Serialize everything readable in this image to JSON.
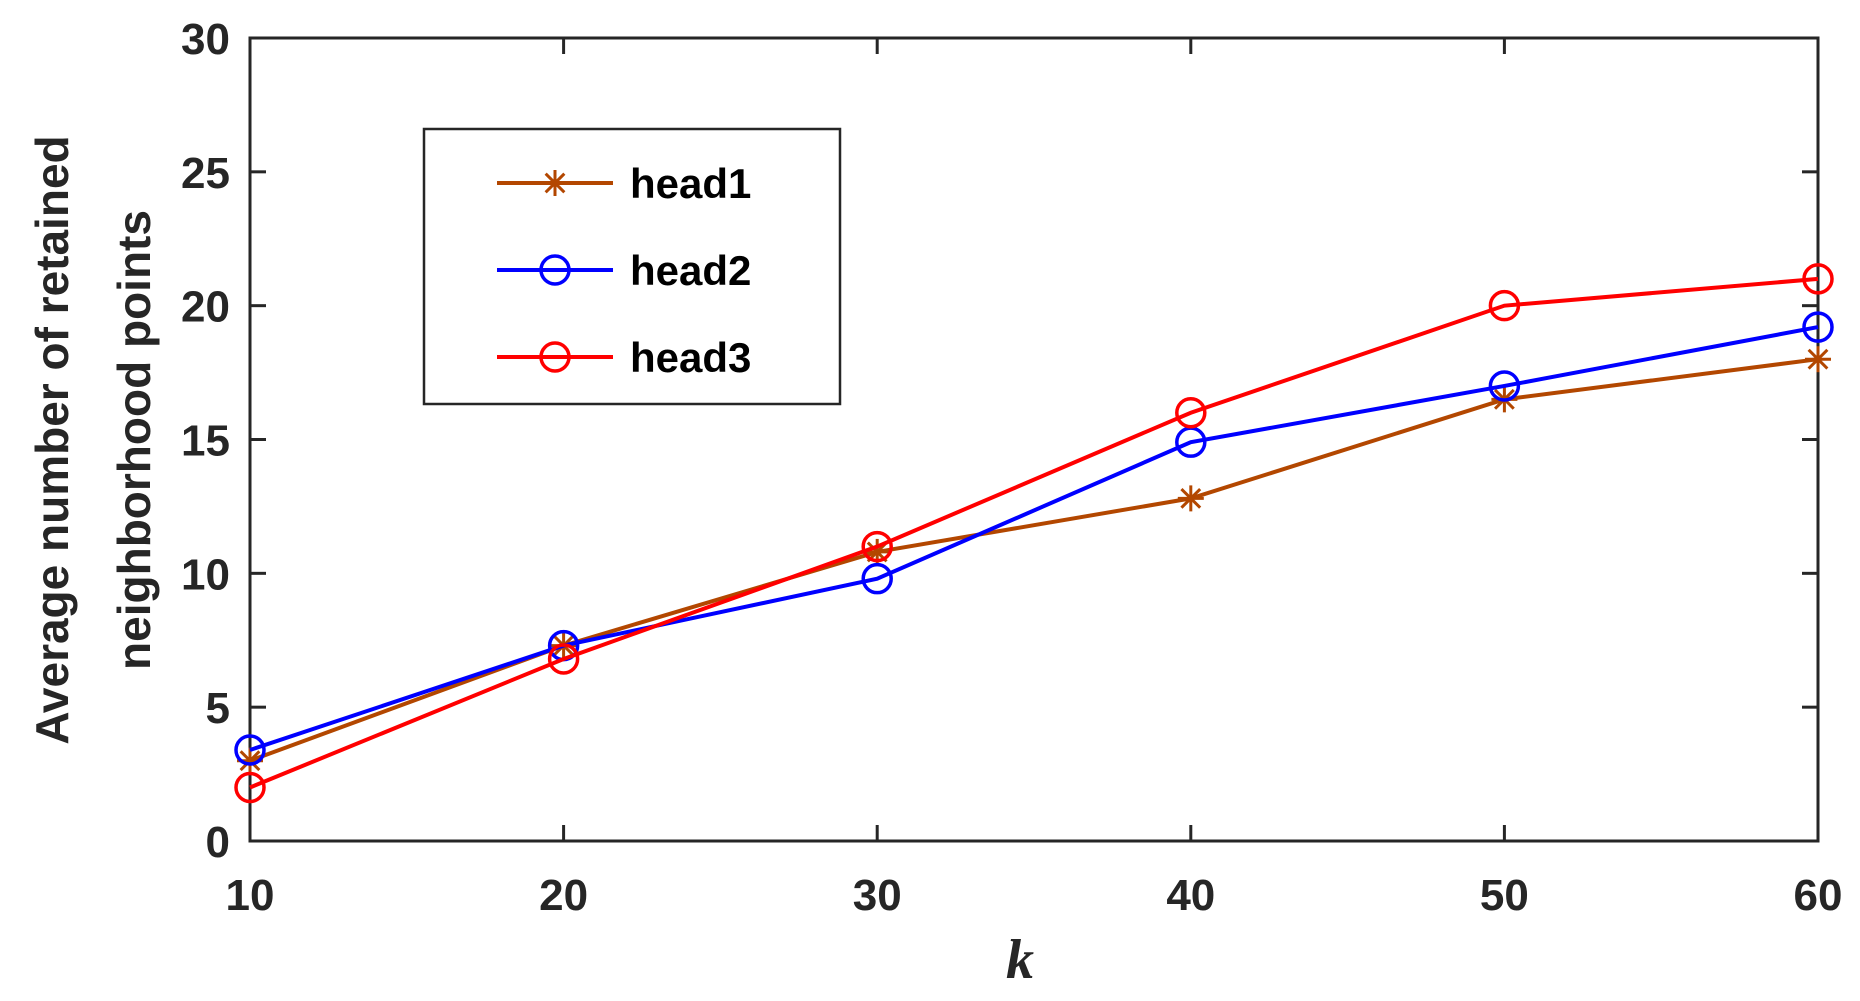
{
  "chart_data": {
    "type": "line",
    "title": "",
    "xlabel": "k",
    "ylabel_lines": [
      "Average number of retained",
      "neighborhood points"
    ],
    "x": [
      10,
      20,
      30,
      40,
      50,
      60
    ],
    "xlim": [
      10,
      60
    ],
    "ylim": [
      0,
      30
    ],
    "xticks": [
      10,
      20,
      30,
      40,
      50,
      60
    ],
    "yticks": [
      0,
      5,
      10,
      15,
      20,
      25,
      30
    ],
    "grid": false,
    "legend_position": "top-left",
    "series": [
      {
        "name": "head1",
        "values": [
          3.0,
          7.3,
          10.8,
          12.8,
          16.5,
          18.0
        ],
        "color": "#b34700",
        "marker": "asterisk"
      },
      {
        "name": "head2",
        "values": [
          3.4,
          7.3,
          9.8,
          14.9,
          17.0,
          19.2
        ],
        "color": "#0000ff",
        "marker": "circle"
      },
      {
        "name": "head3",
        "values": [
          2.0,
          6.8,
          11.0,
          16.0,
          20.0,
          21.0
        ],
        "color": "#ff0000",
        "marker": "circle"
      }
    ]
  }
}
